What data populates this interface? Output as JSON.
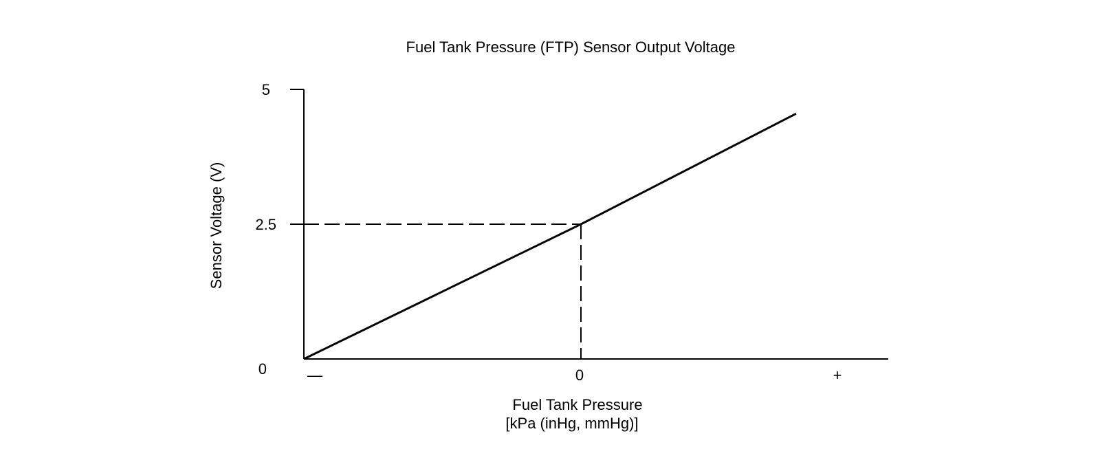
{
  "chart_data": {
    "type": "line",
    "title": "Fuel Tank Pressure (FTP) Sensor Output Voltage",
    "xlabel": "Fuel Tank Pressure",
    "xlabel_units": "[kPa (inHg, mmHg)]",
    "ylabel": "Sensor Voltage (V)",
    "x_tick_labels": [
      "—",
      "0",
      "+"
    ],
    "y_ticks": [
      {
        "label": "0",
        "value": 0
      },
      {
        "label": "2.5",
        "value": 2.5
      },
      {
        "label": "5",
        "value": 5
      }
    ],
    "ylim": [
      0,
      5
    ],
    "xlim": [
      -1,
      1
    ],
    "grid": false,
    "series": [
      {
        "points": [
          {
            "x": -1,
            "y": 0
          },
          {
            "x": 0,
            "y": 2.5
          },
          {
            "x": 0.85,
            "y": 4.55
          }
        ]
      }
    ],
    "reference_point": {
      "x": 0,
      "y": 2.5
    },
    "line_color": "#000000"
  }
}
